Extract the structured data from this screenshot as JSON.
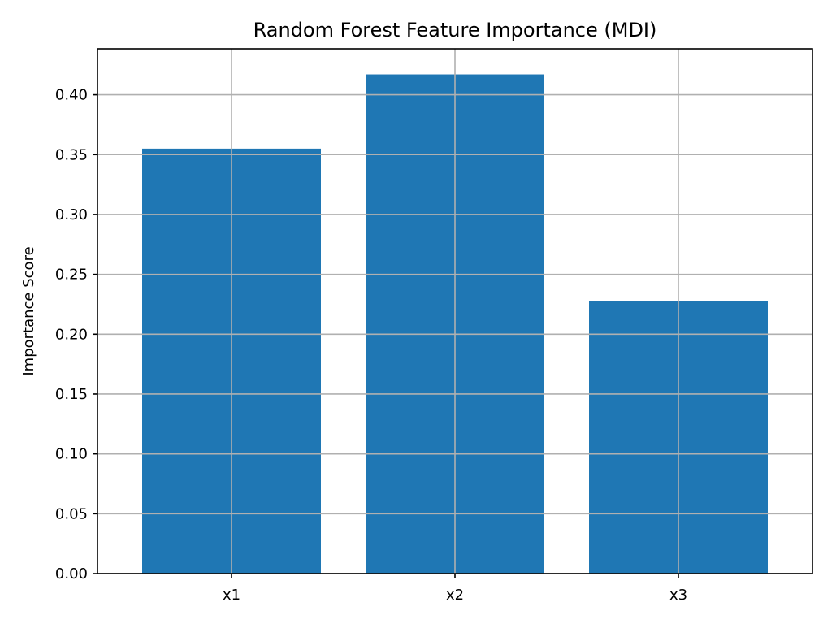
{
  "chart_data": {
    "type": "bar",
    "title": "Random Forest Feature Importance (MDI)",
    "xlabel": "",
    "ylabel": "Importance Score",
    "categories": [
      "x1",
      "x2",
      "x3"
    ],
    "values": [
      0.355,
      0.417,
      0.228
    ],
    "ylim": [
      0,
      0.4384
    ],
    "yticks": [
      0.0,
      0.05,
      0.1,
      0.15,
      0.2,
      0.25,
      0.3,
      0.35,
      0.4
    ],
    "ytick_labels": [
      "0.00",
      "0.05",
      "0.10",
      "0.15",
      "0.20",
      "0.25",
      "0.30",
      "0.35",
      "0.40"
    ],
    "grid": true,
    "bar_color": "#1f77b4"
  }
}
